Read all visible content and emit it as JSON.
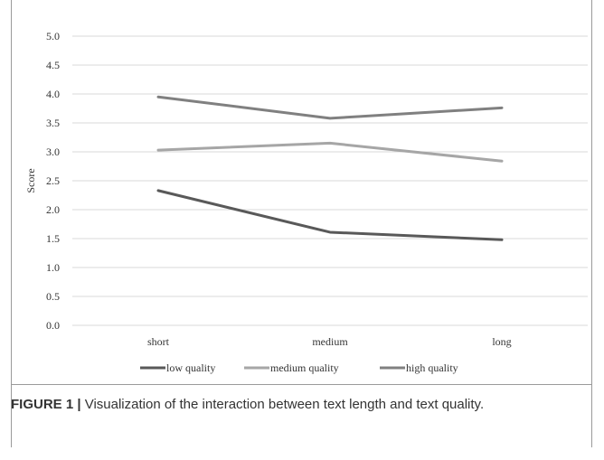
{
  "figure": {
    "label": "FIGURE 1 |",
    "caption": "Visualization of the interaction between text length and text quality."
  },
  "chart_data": {
    "type": "line",
    "categories": [
      "short",
      "medium",
      "long"
    ],
    "ylabel": "Score",
    "ylim": [
      0,
      5
    ],
    "yticks": [
      "0.0",
      "0.5",
      "1.0",
      "1.5",
      "2.0",
      "2.5",
      "3.0",
      "3.5",
      "4.0",
      "4.5",
      "5.0"
    ],
    "grid": "horizontal",
    "legend": "bottom",
    "series": [
      {
        "name": "low quality",
        "values": [
          2.33,
          1.61,
          1.48
        ],
        "color": "#595959"
      },
      {
        "name": "medium quality",
        "values": [
          3.03,
          3.15,
          2.84
        ],
        "color": "#a6a6a6"
      },
      {
        "name": "high quality",
        "values": [
          3.95,
          3.58,
          3.76
        ],
        "color": "#808080"
      }
    ]
  }
}
